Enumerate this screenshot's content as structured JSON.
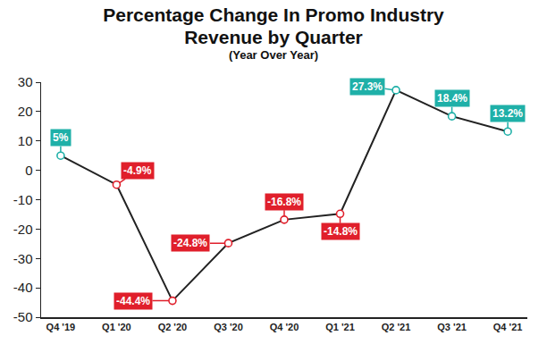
{
  "chart_data": {
    "type": "line",
    "title": "Percentage Change In Promo Industry Revenue by Quarter",
    "subtitle": "(Year Over Year)",
    "categories": [
      "Q4 '19",
      "Q1 '20",
      "Q2 '20",
      "Q3 '20",
      "Q4 '20",
      "Q1 '21",
      "Q2 '21",
      "Q3 '21",
      "Q4 '21"
    ],
    "values": [
      5,
      -4.9,
      -44.4,
      -24.8,
      -16.8,
      -14.8,
      27.3,
      18.4,
      13.2
    ],
    "value_labels": [
      "5%",
      "-4.9%",
      "-44.4%",
      "-24.8%",
      "-16.8%",
      "-14.8%",
      "27.3%",
      "18.4%",
      "13.2%"
    ],
    "color": "#222222",
    "colors": [
      "#1fb0a8",
      "#e01f2b",
      "#e01f2b",
      "#e01f2b",
      "#e01f2b",
      "#e01f2b",
      "#1fb0a8",
      "#1fb0a8",
      "#1fb0a8"
    ],
    "marker": "circle",
    "ylim": [
      -50,
      30
    ],
    "yticks": [
      -50,
      -40,
      -30,
      -20,
      -10,
      0,
      10,
      20,
      30
    ],
    "grid": false,
    "data_labels": true
  }
}
